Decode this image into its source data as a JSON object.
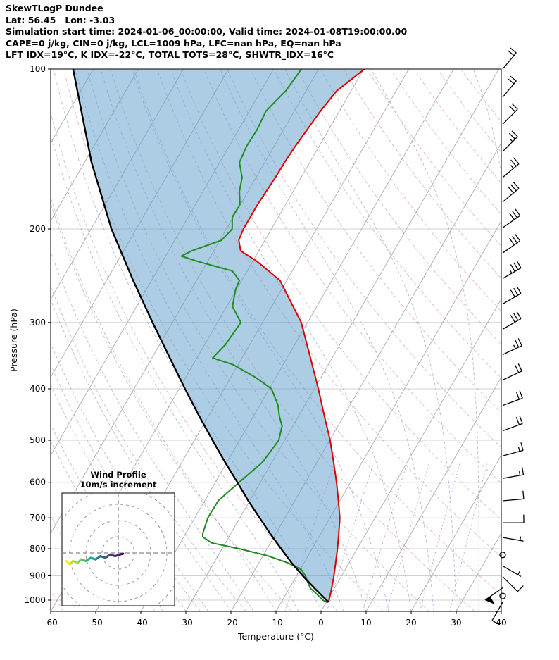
{
  "header": {
    "title": "SkewTLogP Dundee",
    "location": "Lat: 56.45   Lon: -3.03",
    "times": "Simulation start time: 2024-01-06_00:00:00, Valid time: 2024-01-08T19:00:00.00",
    "indices1": "CAPE=0 j/kg, CIN=0 j/kg, LCL=1009 hPa, LFC=nan hPa, EQ=nan hPa",
    "indices2": "LFT IDX=19°C, K IDX=-22°C, TOTAL TOTS=28°C, SHWTR_IDX=16°C"
  },
  "chart_data": {
    "type": "skewt-logp",
    "xlabel": "Temperature (°C)",
    "ylabel": "Pressure (hPa)",
    "xlim": [
      -60,
      40
    ],
    "p_range": [
      100,
      1050
    ],
    "skew_deg": 30,
    "p_ticks": [
      100,
      200,
      300,
      400,
      500,
      600,
      700,
      800,
      900,
      1000
    ],
    "t_ticks": [
      -60,
      -50,
      -40,
      -30,
      -20,
      -10,
      0,
      10,
      20,
      30,
      40
    ],
    "isotherms": {
      "min": -120,
      "max": 40,
      "step": 10
    },
    "dry_adiabats_K": [
      213,
      223,
      233,
      243,
      253,
      263,
      273,
      283,
      293,
      303,
      313,
      323,
      333,
      343,
      353,
      363,
      373,
      383,
      393,
      403,
      413,
      423,
      433,
      443,
      453
    ],
    "moist_adiabats_start_C": [
      -35,
      -30,
      -25,
      -20,
      -15,
      -10,
      -5,
      0,
      5,
      10,
      15,
      20,
      25,
      30,
      35,
      40
    ],
    "mixing_ratio_g_kg": [
      2,
      4,
      7,
      10,
      16,
      24
    ],
    "colors": {
      "grid": "#d0d0d0",
      "isotherm": "#adadad",
      "dry_adiabat": "#d9777f",
      "moist_adiabat": "#8090d8",
      "mixing_ratio": "#a05fc0",
      "temperature": "#dd0000",
      "dewpoint": "#1f8c1f",
      "parcel": "#000000",
      "shade": "#5b9bc9"
    },
    "temperature_profile": {
      "pressure_hPa": [
        1009,
        950,
        900,
        850,
        800,
        750,
        700,
        650,
        600,
        550,
        500,
        450,
        400,
        350,
        300,
        250,
        230,
        220,
        210,
        200,
        180,
        160,
        150,
        140,
        120,
        110,
        100
      ],
      "temp_C": [
        0.5,
        -0.6,
        -1.7,
        -3.0,
        -4.4,
        -6.0,
        -7.8,
        -10.3,
        -13.1,
        -16.3,
        -19.9,
        -24.3,
        -29.1,
        -34.8,
        -41.4,
        -51.5,
        -59.1,
        -64.0,
        -65.8,
        -66.2,
        -66.2,
        -65.7,
        -65.6,
        -65.3,
        -64.2,
        -63.2,
        -59.8
      ]
    },
    "dewpoint_profile": {
      "pressure_hPa": [
        1009,
        1000,
        975,
        950,
        925,
        900,
        875,
        850,
        825,
        800,
        780,
        760,
        750,
        700,
        650,
        600,
        550,
        500,
        470,
        450,
        430,
        400,
        380,
        360,
        350,
        330,
        300,
        280,
        260,
        250,
        240,
        230,
        225,
        220,
        210,
        200,
        190,
        180,
        170,
        160,
        150,
        140,
        130,
        120,
        110,
        100
      ],
      "temp_C": [
        0.1,
        -1.0,
        -3.1,
        -5.3,
        -6.7,
        -8.0,
        -9.8,
        -13.7,
        -19.0,
        -26.2,
        -33.1,
        -35.8,
        -36.2,
        -37.1,
        -37.0,
        -34.7,
        -32.1,
        -31.3,
        -32.4,
        -34.3,
        -35.9,
        -39.5,
        -44.7,
        -51.2,
        -56.5,
        -55.4,
        -54.8,
        -58.7,
        -60.2,
        -60.5,
        -63.3,
        -72.4,
        -76.5,
        -74.9,
        -69.6,
        -68.7,
        -70.2,
        -70.1,
        -71.9,
        -73.1,
        -75.6,
        -76.1,
        -75.9,
        -76.3,
        -74.5,
        -73.8
      ]
    },
    "parcel_profile": {
      "pressure_hPa": [
        1009,
        950,
        900,
        850,
        800,
        750,
        700,
        650,
        600,
        550,
        500,
        450,
        400,
        350,
        300,
        250,
        200,
        150,
        100
      ],
      "temp_C": [
        0.5,
        -4.4,
        -8.6,
        -12.8,
        -16.9,
        -21.2,
        -25.6,
        -30.3,
        -35.1,
        -40.4,
        -46.0,
        -52.1,
        -58.7,
        -66.0,
        -74.4,
        -84.1,
        -95.5,
        -108.4,
        -124.5
      ]
    },
    "shaded_area": "between parcel curve and temperature curve",
    "wind_barbs": [
      {
        "p": 100,
        "speed_ms": 18,
        "dir_deg": 40
      },
      {
        "p": 113,
        "speed_ms": 20,
        "dir_deg": 40
      },
      {
        "p": 127,
        "speed_ms": 22,
        "dir_deg": 45
      },
      {
        "p": 143,
        "speed_ms": 25,
        "dir_deg": 45
      },
      {
        "p": 160,
        "speed_ms": 25,
        "dir_deg": 50
      },
      {
        "p": 178,
        "speed_ms": 28,
        "dir_deg": 50
      },
      {
        "p": 199,
        "speed_ms": 32,
        "dir_deg": 55
      },
      {
        "p": 222,
        "speed_ms": 30,
        "dir_deg": 55
      },
      {
        "p": 248,
        "speed_ms": 33,
        "dir_deg": 60
      },
      {
        "p": 277,
        "speed_ms": 30,
        "dir_deg": 60
      },
      {
        "p": 309,
        "speed_ms": 28,
        "dir_deg": 60
      },
      {
        "p": 345,
        "speed_ms": 25,
        "dir_deg": 65
      },
      {
        "p": 385,
        "speed_ms": 22,
        "dir_deg": 65
      },
      {
        "p": 430,
        "speed_ms": 20,
        "dir_deg": 70
      },
      {
        "p": 480,
        "speed_ms": 18,
        "dir_deg": 70
      },
      {
        "p": 535,
        "speed_ms": 15,
        "dir_deg": 75
      },
      {
        "p": 590,
        "speed_ms": 13,
        "dir_deg": 80
      },
      {
        "p": 650,
        "speed_ms": 10,
        "dir_deg": 85
      },
      {
        "p": 715,
        "speed_ms": 8,
        "dir_deg": 90
      },
      {
        "p": 762,
        "speed_ms": 5,
        "dir_deg": 100
      },
      {
        "p": 822,
        "speed_ms": 0,
        "dir_deg": 0
      },
      {
        "p": 862,
        "speed_ms": 5,
        "dir_deg": 120
      },
      {
        "p": 903,
        "speed_ms": 10,
        "dir_deg": 135
      },
      {
        "p": 948,
        "speed_ms": 50,
        "dir_deg": 235
      },
      {
        "p": 982,
        "speed_ms": 0,
        "dir_deg": 0
      },
      {
        "p": 1009,
        "speed_ms": 8,
        "dir_deg": 210
      }
    ],
    "hodograph": {
      "title": "Wind Profile",
      "subtitle": "10m/s increment",
      "ring_increment_ms": 10,
      "rings_ms": [
        10,
        20,
        30,
        40
      ],
      "trace_uv_ms": [
        [
          3,
          -0.5
        ],
        [
          1,
          -1
        ],
        [
          -2,
          -2
        ],
        [
          -5,
          -1
        ],
        [
          -8,
          -3
        ],
        [
          -11,
          -2
        ],
        [
          -14,
          -4
        ],
        [
          -17,
          -3
        ],
        [
          -20,
          -5
        ],
        [
          -23,
          -4
        ],
        [
          -25,
          -6
        ],
        [
          -28,
          -5
        ],
        [
          -30,
          -7
        ],
        [
          -32,
          -5
        ]
      ],
      "trace_colors": [
        "#440154",
        "#471d6c",
        "#472f7d",
        "#414487",
        "#355f8d",
        "#2a788e",
        "#21918c",
        "#22a884",
        "#44bf70",
        "#7ad151",
        "#a0da39",
        "#bddf26",
        "#fde725"
      ]
    }
  }
}
